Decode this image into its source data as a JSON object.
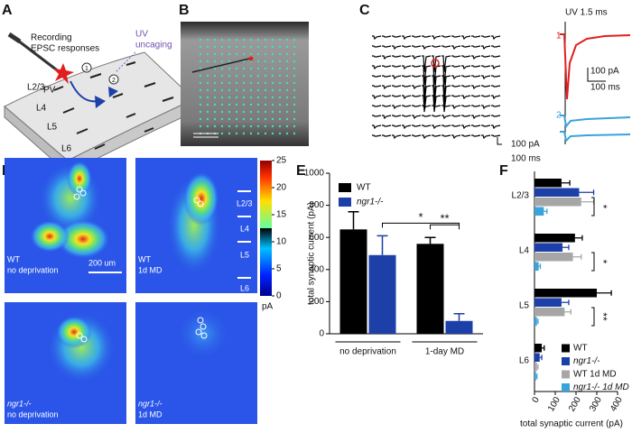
{
  "figure": {
    "panel_labels": [
      "A",
      "B",
      "C",
      "D",
      "E",
      "F"
    ],
    "a": {
      "recording": "Recording",
      "epsc": "EPSC responses",
      "uv": "UV",
      "uncaging": "uncaging",
      "pv": "PV",
      "steps": [
        "1",
        "2"
      ],
      "layers": [
        "L2/3",
        "L4",
        "L5",
        "L6"
      ]
    },
    "c": {
      "uv_label": "UV 1.5 ms",
      "trace_labels": [
        "1",
        "2"
      ],
      "scale_left": [
        "100 pA",
        "100 ms"
      ],
      "scale_right": [
        "100 pA",
        "100 ms"
      ]
    },
    "d": {
      "maps": [
        {
          "genotype": "WT",
          "condition": "no deprivation"
        },
        {
          "genotype": "WT",
          "condition": "1d MD"
        },
        {
          "genotype": "ngr1-/-",
          "condition": "no deprivation"
        },
        {
          "genotype": "ngr1-/-",
          "condition": "1d MD"
        }
      ],
      "scale_bar": "200 um",
      "layers": [
        "L2/3",
        "L4",
        "L5",
        "L6"
      ],
      "colorbar": {
        "lim": [
          0,
          25
        ],
        "ticks": [
          0,
          5,
          10,
          15,
          20,
          25
        ],
        "unit": "pA"
      }
    }
  },
  "chart_data": [
    {
      "type": "bar",
      "categories": [
        "no deprivation",
        "1-day MD"
      ],
      "series": [
        {
          "name": "WT",
          "color": "#000000",
          "values": [
            650,
            560
          ],
          "errors": [
            110,
            40
          ]
        },
        {
          "name": "ngr1-/-",
          "color": "#1c3fa8",
          "values": [
            490,
            80
          ],
          "errors": [
            120,
            45
          ]
        }
      ],
      "ylim": [
        0,
        1000
      ],
      "yticks": [
        0,
        200,
        400,
        600,
        800,
        1000
      ],
      "ylabel": "total synaptic current (pA)",
      "annotations": [
        "*",
        "**"
      ],
      "legend": "upper left"
    },
    {
      "type": "barh",
      "categories": [
        "L2/3",
        "L4",
        "L5",
        "L6"
      ],
      "series": [
        {
          "name": "WT",
          "color": "#000000",
          "values": [
            130,
            195,
            300,
            35
          ],
          "errors": [
            40,
            35,
            70,
            12
          ]
        },
        {
          "name": "ngr1-/-",
          "color": "#1c3fa8",
          "values": [
            215,
            135,
            130,
            25
          ],
          "errors": [
            70,
            30,
            35,
            10
          ]
        },
        {
          "name": "WT 1d MD",
          "color": "#a6a6a6",
          "values": [
            225,
            185,
            145,
            12
          ],
          "errors": [
            60,
            40,
            30,
            5
          ]
        },
        {
          "name": "ngr1-/- 1d MD",
          "color": "#3aa3dc",
          "values": [
            45,
            20,
            12,
            8
          ],
          "errors": [
            15,
            8,
            5,
            4
          ]
        }
      ],
      "xlim": [
        0,
        400
      ],
      "xticks": [
        0,
        100,
        200,
        300,
        400
      ],
      "xlabel": "total synaptic current (pA)",
      "annotations": [
        "*",
        "*",
        "**"
      ],
      "legend": "lower right"
    }
  ]
}
